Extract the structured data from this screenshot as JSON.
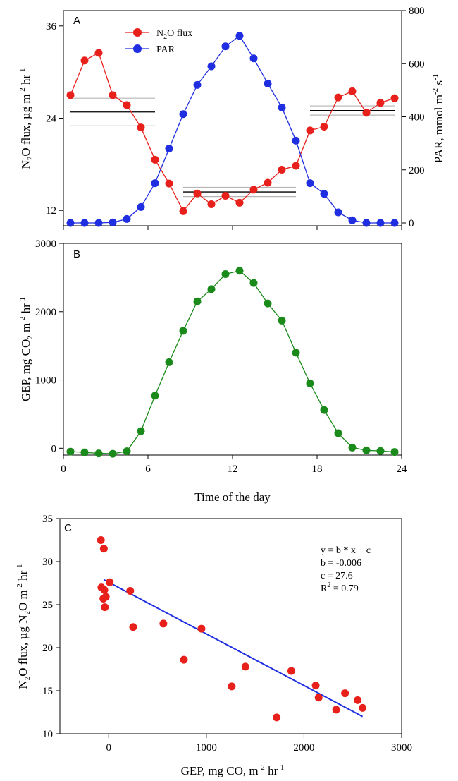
{
  "chart_data": [
    {
      "panel": "A",
      "type": "line",
      "xlim": [
        0,
        24
      ],
      "ylim_left": [
        10,
        38
      ],
      "ylim_right": [
        0,
        800
      ],
      "left_ticks": [
        "12",
        "24",
        "36"
      ],
      "right_ticks": [
        "0",
        "200",
        "400",
        "600",
        "800"
      ],
      "ylabel_left": {
        "pre": "N",
        "sub1": "2",
        "mid": "O flux, µg m",
        "sup1": "-2",
        "post": " hr",
        "sup2": "-1"
      },
      "ylabel_right": {
        "pre": "PAR, mmol m",
        "sup1": "-2",
        "mid": " s",
        "sup2": "-1"
      },
      "legend": [
        {
          "pre": "N",
          "sub": "2",
          "post": "O flux",
          "color": "#e8201c"
        },
        {
          "pre": "PAR",
          "sub": "",
          "post": "",
          "color": "#1f2ee0"
        }
      ],
      "series": [
        {
          "name": "N2O flux",
          "axis": "left",
          "color": "#e8201c",
          "x": [
            0.5,
            1.5,
            2.5,
            3.5,
            4.5,
            5.5,
            6.5,
            7.5,
            8.5,
            9.5,
            10.5,
            11.5,
            12.5,
            13.5,
            14.5,
            15.5,
            16.5,
            17.5,
            18.5,
            19.5,
            20.5,
            21.5,
            22.5,
            23.5
          ],
          "y": [
            27.0,
            31.5,
            32.5,
            27.0,
            25.7,
            22.8,
            18.6,
            15.5,
            11.9,
            14.2,
            12.8,
            13.9,
            13.0,
            14.7,
            15.6,
            17.3,
            17.8,
            22.4,
            22.9,
            26.7,
            27.5,
            24.7,
            26.0,
            26.6
          ]
        },
        {
          "name": "PAR",
          "axis": "right",
          "color": "#1f2ee0",
          "x": [
            0.5,
            1.5,
            2.5,
            3.5,
            4.5,
            5.5,
            6.5,
            7.5,
            8.5,
            9.5,
            10.5,
            11.5,
            12.5,
            13.5,
            14.5,
            15.5,
            16.5,
            17.5,
            18.5,
            19.5,
            20.5,
            21.5,
            22.5,
            23.5
          ],
          "y": [
            0,
            0,
            0,
            2,
            15,
            60,
            150,
            280,
            410,
            520,
            590,
            665,
            705,
            620,
            525,
            435,
            310,
            150,
            110,
            40,
            10,
            0,
            0,
            0
          ]
        }
      ],
      "mean_bands": [
        {
          "x": [
            0.5,
            6.5
          ],
          "mean": 24.8,
          "low": 23.0,
          "high": 26.6
        },
        {
          "x": [
            8.5,
            16.5
          ],
          "mean": 14.4,
          "low": 13.8,
          "high": 15.0
        },
        {
          "x": [
            17.5,
            23.5
          ],
          "mean": 25.0,
          "low": 24.4,
          "high": 25.6
        }
      ]
    },
    {
      "panel": "B",
      "type": "line",
      "xlim": [
        0,
        24
      ],
      "ylim": [
        -100,
        3000
      ],
      "x_ticks": [
        "0",
        "6",
        "12",
        "18",
        "24"
      ],
      "y_ticks": [
        "0",
        "1000",
        "2000",
        "3000"
      ],
      "ylabel": {
        "pre": "GEP, mg CO",
        "sub1": "2",
        "mid": " m",
        "sup1": "-2",
        "post": " hr",
        "sup2": "-1"
      },
      "xlabel": "Time of the day",
      "series": [
        {
          "name": "GEP",
          "color": "#1a8a1a",
          "x": [
            0.5,
            1.5,
            2.5,
            3.5,
            4.5,
            5.5,
            6.5,
            7.5,
            8.5,
            9.5,
            10.5,
            11.5,
            12.5,
            13.5,
            14.5,
            15.5,
            16.5,
            17.5,
            18.5,
            19.5,
            20.5,
            21.5,
            22.5,
            23.5
          ],
          "y": [
            -50,
            -60,
            -75,
            -80,
            -45,
            250,
            770,
            1260,
            1720,
            2150,
            2330,
            2550,
            2600,
            2420,
            2120,
            1870,
            1400,
            950,
            560,
            220,
            10,
            -30,
            -40,
            -55
          ]
        }
      ]
    },
    {
      "panel": "C",
      "type": "scatter",
      "xlim": [
        -500,
        3000
      ],
      "ylim": [
        10,
        35
      ],
      "x_ticks": [
        "0",
        "1000",
        "2000",
        "3000"
      ],
      "y_ticks": [
        "10",
        "15",
        "20",
        "25",
        "30",
        "35"
      ],
      "xlabel": {
        "pre": "GEP, mg CO, m",
        "sup1": "-2",
        "mid": " hr",
        "sup2": "-1"
      },
      "ylabel": {
        "pre": "N",
        "sub1": "2",
        "mid": "O flux, µg N",
        "sub2": "2",
        "post": "O m",
        "sup1": "-2",
        "post2": " hr",
        "sup2": "-1"
      },
      "points": {
        "color": "#e8201c",
        "x": [
          -80,
          -50,
          -75,
          -45,
          -30,
          -55,
          -40,
          10,
          220,
          250,
          560,
          770,
          950,
          1260,
          1400,
          1720,
          1870,
          2120,
          2150,
          2330,
          2420,
          2550,
          2600
        ],
        "y": [
          32.5,
          31.5,
          27.0,
          26.7,
          25.9,
          25.7,
          24.7,
          27.6,
          26.6,
          22.4,
          22.8,
          18.6,
          22.2,
          15.5,
          17.8,
          11.9,
          17.3,
          15.6,
          14.2,
          12.8,
          14.7,
          13.9,
          13.0
        ]
      },
      "fit": {
        "b": -0.006,
        "c": 27.6,
        "x": [
          -50,
          2600
        ],
        "color": "#1f2ee0"
      },
      "equation_lines": [
        "y = b * x + c",
        "b = -0.006",
        "c = 27.6"
      ],
      "r2": {
        "pre": "R",
        "sup": "2",
        "post": " = 0.79"
      }
    }
  ]
}
